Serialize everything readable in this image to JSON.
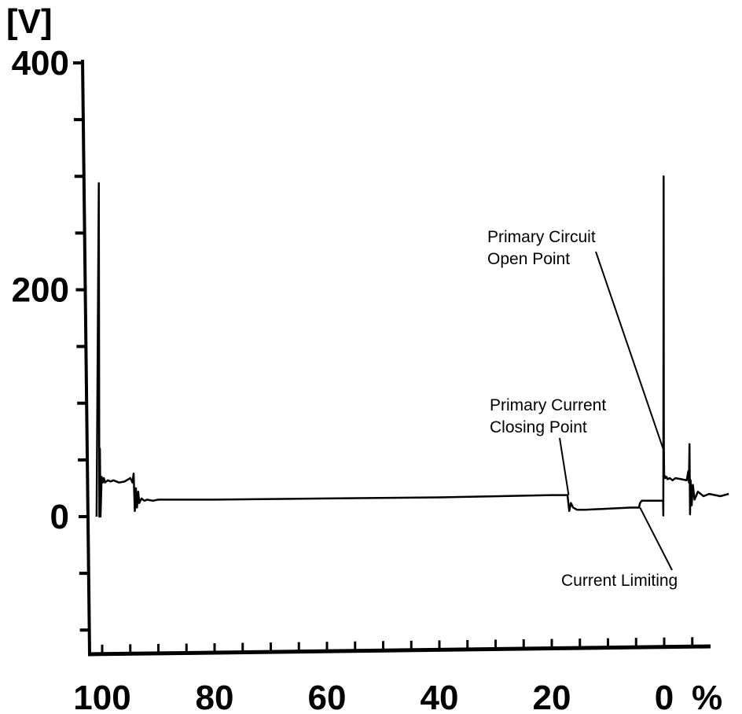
{
  "chart_data": {
    "type": "line",
    "ylabel": "[V]",
    "x_unit": "%",
    "xlim": [
      105,
      -5
    ],
    "ylim": [
      -120,
      400
    ],
    "x_ticks": [
      100,
      80,
      60,
      40,
      20,
      0
    ],
    "y_ticks": [
      400,
      200,
      0
    ],
    "x_tick_labels": [
      "100",
      "80",
      "60",
      "40",
      "20",
      "0"
    ],
    "y_tick_labels": [
      "400",
      "200",
      "0"
    ],
    "grid": false,
    "series": [
      {
        "x": [
          101.0,
          100.6,
          100.5,
          100.4,
          100.3,
          100.1,
          99.9,
          99.7,
          99.5,
          99.0,
          98.5,
          98.0,
          97.0,
          96.0,
          95.0,
          94.6,
          94.4,
          94.2,
          94.0,
          93.8,
          93.6,
          93.4,
          93.0,
          92.5,
          92.0,
          91.0,
          90.0,
          85.0,
          80.0,
          60.0,
          40.0,
          20.0,
          17.2,
          16.9,
          16.6,
          16.2,
          15.5,
          14.0,
          10.0,
          6.0,
          4.5,
          4.3,
          4.0,
          2.0,
          0.2,
          0.15,
          0.1,
          0.05,
          0.0,
          -0.1,
          -0.2,
          -0.4,
          -0.6,
          -1.0,
          -1.5,
          -2.0,
          -3.0,
          -4.0,
          -4.3,
          -4.4,
          -4.5,
          -4.6,
          -4.7,
          -4.9,
          -5.1,
          -5.4,
          -6.0,
          -7.0,
          -8.0,
          -10.0,
          -11.5
        ],
        "y": [
          0,
          294,
          0,
          60,
          0,
          35,
          30,
          34,
          30,
          32,
          31,
          32,
          30,
          31,
          34,
          30,
          38,
          5,
          25,
          8,
          22,
          12,
          16,
          14,
          15,
          14,
          15,
          15,
          15,
          16,
          17,
          19,
          19,
          5,
          12,
          8,
          6,
          6,
          7,
          8,
          8,
          12,
          14,
          14,
          14,
          1,
          300,
          60,
          34,
          36,
          34,
          35,
          33,
          34,
          32,
          34,
          33,
          32,
          40,
          30,
          64,
          2,
          32,
          10,
          28,
          15,
          22,
          18,
          20,
          18,
          20
        ]
      }
    ],
    "annotations": [
      {
        "text": [
          "Primary Circuit",
          "Open Point"
        ],
        "x": 0.2,
        "y": 60
      },
      {
        "text": [
          "Primary Current",
          "Closing Point"
        ],
        "x": 17.0,
        "y": 19
      },
      {
        "text": [
          "Current Limiting"
        ],
        "x": 4.3,
        "y": 8
      }
    ]
  }
}
